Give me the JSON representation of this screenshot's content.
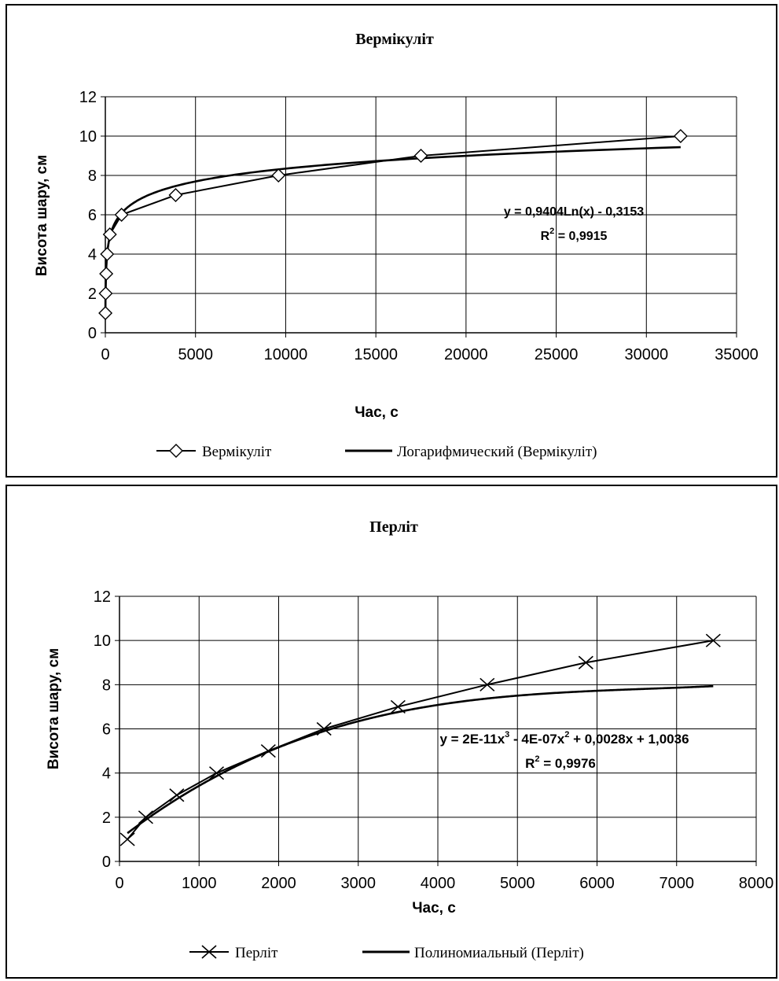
{
  "chart_data": [
    {
      "type": "scatter",
      "title": "Вермікуліт",
      "xlabel": "Час, с",
      "ylabel": "Висота шару, см",
      "xlim": [
        0,
        35000
      ],
      "ylim": [
        0,
        12
      ],
      "x_ticks": [
        0,
        5000,
        10000,
        15000,
        20000,
        25000,
        30000,
        35000
      ],
      "y_ticks": [
        0,
        2,
        4,
        6,
        8,
        10,
        12
      ],
      "grid": true,
      "legend": "bottom",
      "marker": "diamond",
      "series": [
        {
          "name": "Вермікуліт",
          "x": [
            5,
            20,
            50,
            100,
            250,
            900,
            3900,
            9600,
            17500,
            31900
          ],
          "y": [
            1,
            2,
            3,
            4,
            5,
            6,
            7,
            8,
            9,
            10
          ]
        }
      ],
      "trendline": {
        "name": "Логарифмический (Вермікуліт)",
        "type": "logarithmic",
        "a": 0.9404,
        "b": -0.3153,
        "x_range": [
          5,
          31900
        ]
      },
      "annotations": [
        "y = 0,9404Ln(x) - 0,3153",
        "R",
        "2",
        " = 0,9915"
      ]
    },
    {
      "type": "scatter",
      "title": "Перліт",
      "xlabel": "Час, с",
      "ylabel": "Висота шару, см",
      "xlim": [
        0,
        8000
      ],
      "ylim": [
        0,
        12
      ],
      "x_ticks": [
        0,
        1000,
        2000,
        3000,
        4000,
        5000,
        6000,
        7000,
        8000
      ],
      "y_ticks": [
        0,
        2,
        4,
        6,
        8,
        10,
        12
      ],
      "grid": true,
      "legend": "bottom",
      "marker": "x",
      "series": [
        {
          "name": "Перліт",
          "x": [
            100,
            330,
            720,
            1220,
            1870,
            2570,
            3500,
            4620,
            5860,
            7460
          ],
          "y": [
            1,
            2,
            3,
            4,
            5,
            6,
            7,
            8,
            9,
            10
          ]
        }
      ],
      "trendline": {
        "name": "Полиномиальный (Перліт)",
        "type": "polynomial",
        "coefficients": [
          1.0036,
          0.0028,
          -4e-07,
          2e-11
        ],
        "x_range": [
          100,
          7460
        ]
      },
      "annotations": [
        "y = 2E-11x",
        "3",
        " - 4E-07x",
        "2",
        " + 0,0028x + 1,0036",
        "R",
        "2",
        " = 0,9976"
      ]
    }
  ]
}
